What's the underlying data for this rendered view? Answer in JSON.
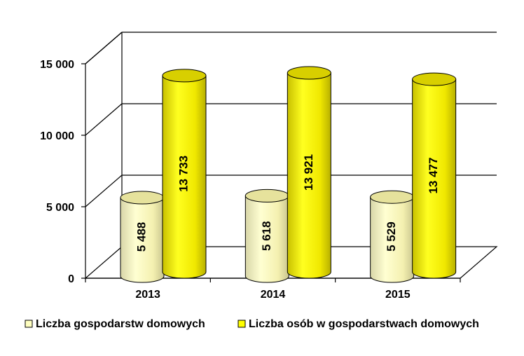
{
  "chart_data": {
    "type": "bar",
    "title": "",
    "xlabel": "",
    "ylabel": "",
    "categories": [
      "2013",
      "2014",
      "2015"
    ],
    "series": [
      {
        "name": "Liczba gospodarstw domowych",
        "values": [
          5488,
          5618,
          5529
        ],
        "labels": [
          "5 488",
          "5 618",
          "5 529"
        ],
        "color": "#FFFFC0"
      },
      {
        "name": "Liczba osób w gospodarstwach domowych",
        "values": [
          13733,
          13921,
          13477
        ],
        "labels": [
          "13 733",
          "13 921",
          "13 477"
        ],
        "color": "#FFFF00"
      }
    ],
    "ylim": [
      0,
      15000
    ],
    "yticks": [
      0,
      5000,
      10000,
      15000
    ],
    "ytick_labels": [
      "0",
      "5 000",
      "10 000",
      "15 000"
    ],
    "grid": true,
    "legend": "bottom"
  }
}
